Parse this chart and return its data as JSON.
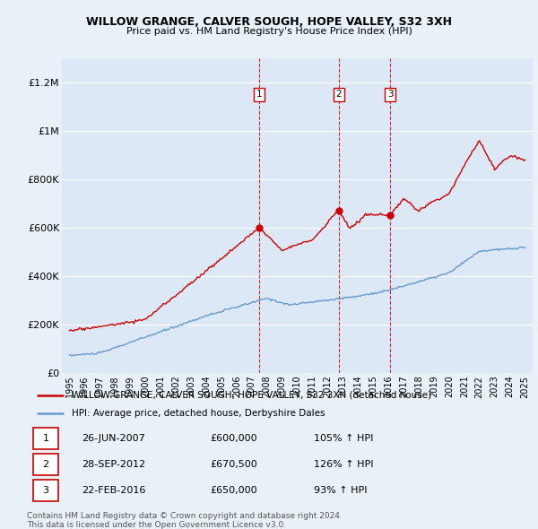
{
  "title": "WILLOW GRANGE, CALVER SOUGH, HOPE VALLEY, S32 3XH",
  "subtitle": "Price paid vs. HM Land Registry's House Price Index (HPI)",
  "bg_color": "#e8f0f8",
  "plot_bg_color": "#dce8f5",
  "legend_line1": "WILLOW GRANGE, CALVER SOUGH, HOPE VALLEY, S32 3XH (detached house)",
  "legend_line2": "HPI: Average price, detached house, Derbyshire Dales",
  "footer1": "Contains HM Land Registry data © Crown copyright and database right 2024.",
  "footer2": "This data is licensed under the Open Government Licence v3.0.",
  "transactions": [
    {
      "num": 1,
      "date": "26-JUN-2007",
      "price": "£600,000",
      "pct": "105%",
      "dir": "↑",
      "ref": "HPI"
    },
    {
      "num": 2,
      "date": "28-SEP-2012",
      "price": "£670,500",
      "pct": "126%",
      "dir": "↑",
      "ref": "HPI"
    },
    {
      "num": 3,
      "date": "22-FEB-2016",
      "price": "£650,000",
      "pct": "93%",
      "dir": "↑",
      "ref": "HPI"
    }
  ],
  "transaction_dates": [
    2007.49,
    2012.74,
    2016.13
  ],
  "transaction_prices": [
    600000,
    670500,
    650000
  ],
  "vline_color": "#cc0000",
  "red_line_color": "#cc0000",
  "blue_line_color": "#6699cc",
  "ylim": [
    0,
    1300000
  ],
  "yticks": [
    0,
    200000,
    400000,
    600000,
    800000,
    1000000,
    1200000
  ],
  "ytick_labels": [
    "£0",
    "£200K",
    "£400K",
    "£600K",
    "£800K",
    "£1M",
    "£1.2M"
  ],
  "xmin": 1994.5,
  "xmax": 2025.5
}
